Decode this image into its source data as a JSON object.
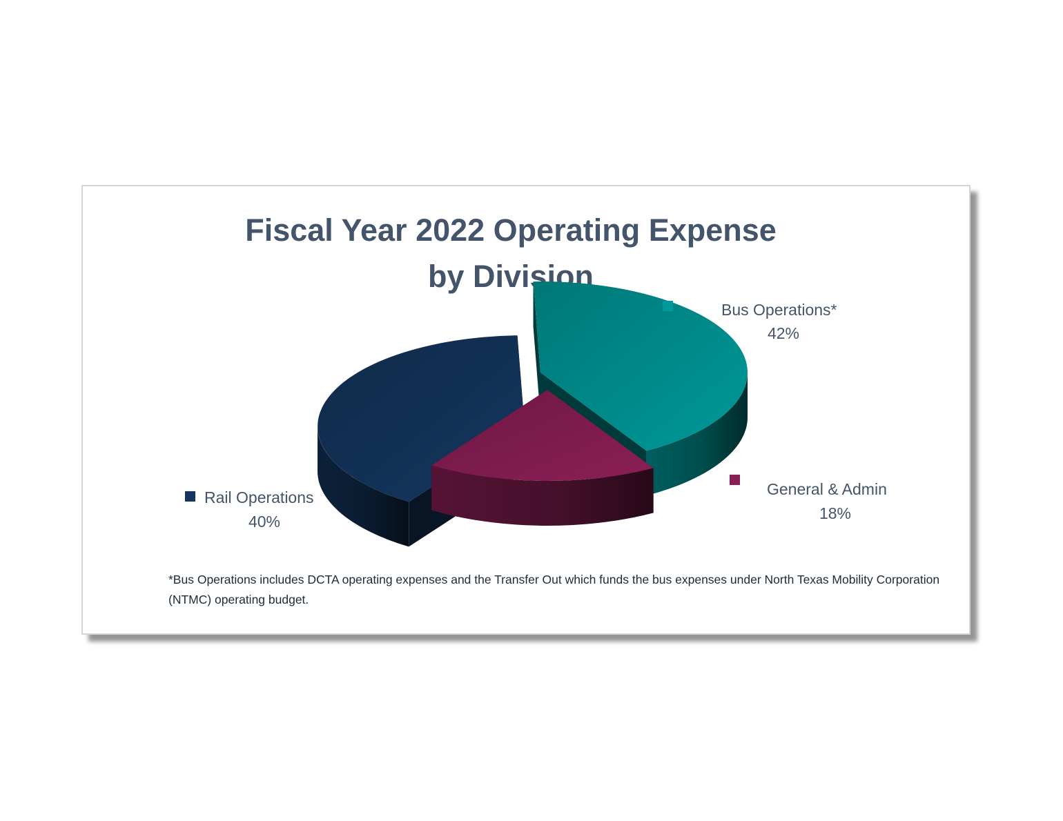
{
  "chart_data": {
    "type": "pie",
    "title": "Fiscal Year 2022 Operating Expense by Division",
    "title_lines": [
      "Fiscal Year 2022 Operating Expense",
      "by Division"
    ],
    "series": [
      {
        "name": "Bus Operations*",
        "value": 42,
        "label": "42%",
        "color": "#009999"
      },
      {
        "name": "General & Admin",
        "value": 18,
        "label": "18%",
        "color": "#8b1f55"
      },
      {
        "name": "Rail Operations",
        "value": 40,
        "label": "40%",
        "color": "#14365e"
      }
    ],
    "exploded": true,
    "three_d": true,
    "legend": "beside slices"
  },
  "footnote": "*Bus Operations includes DCTA operating expenses and the Transfer Out which funds the bus expenses under North Texas Mobility Corporation (NTMC) operating budget."
}
